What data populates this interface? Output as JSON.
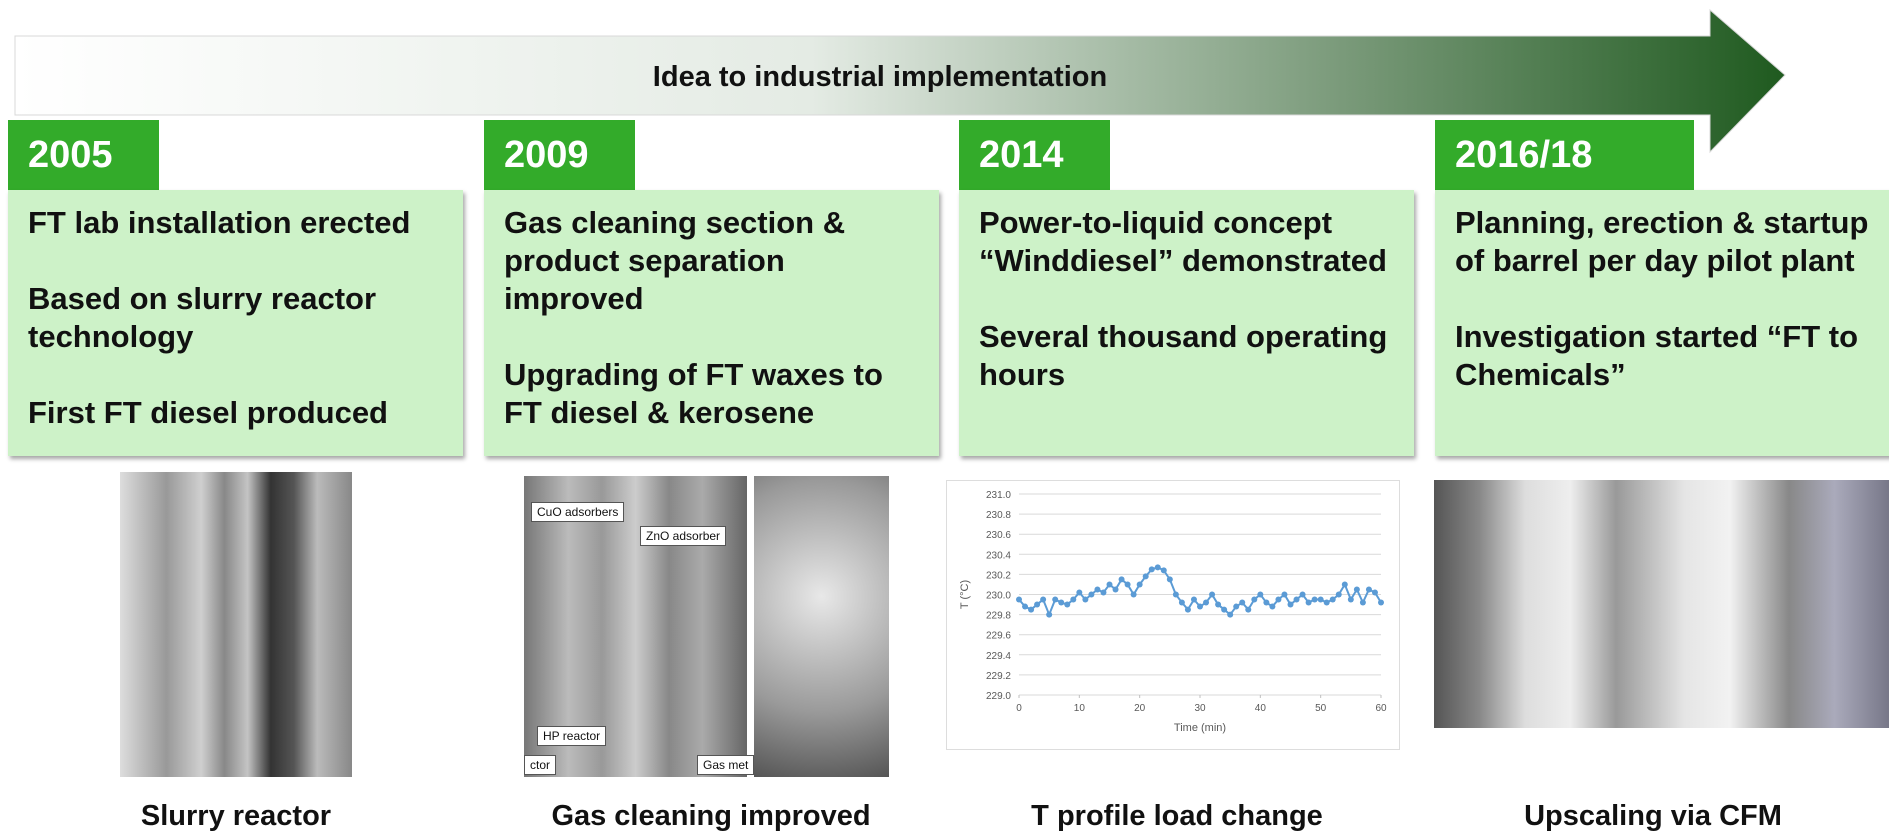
{
  "header": {
    "title": "Idea to industrial implementation"
  },
  "milestones": [
    {
      "year": "2005",
      "paragraphs": [
        "FT lab installation erected",
        "Based on slurry reactor technology",
        "First FT diesel produced"
      ],
      "caption": "Slurry reactor"
    },
    {
      "year": "2009",
      "paragraphs": [
        "Gas cleaning section & product separation improved",
        "Upgrading of FT waxes to FT diesel & kerosene"
      ],
      "caption": "Gas cleaning improved",
      "photo_labels": [
        "CuO adsorbers",
        "ZnO adsorber",
        "HP reactor",
        "ctor",
        "Gas met"
      ]
    },
    {
      "year": "2014",
      "paragraphs": [
        "Power-to-liquid concept “Winddiesel” demonstrated",
        "Several thousand operating hours"
      ],
      "caption": "T profile load change",
      "chart": {
        "type": "line",
        "xlabel": "Time (min)",
        "ylabel": "T (°C)",
        "color": "#5b9bd5",
        "x": [
          0,
          1,
          2,
          3,
          4,
          5,
          6,
          7,
          8,
          9,
          10,
          11,
          12,
          13,
          14,
          15,
          16,
          17,
          18,
          19,
          20,
          21,
          22,
          23,
          24,
          25,
          26,
          27,
          28,
          29,
          30,
          31,
          32,
          33,
          34,
          35,
          36,
          37,
          38,
          39,
          40,
          41,
          42,
          43,
          44,
          45,
          46,
          47,
          48,
          49,
          50,
          51,
          52,
          53,
          54,
          55,
          56,
          57,
          58,
          59,
          60
        ],
        "values": [
          229.95,
          229.88,
          229.85,
          229.9,
          229.95,
          229.8,
          229.95,
          229.92,
          229.9,
          229.95,
          230.02,
          229.95,
          230.0,
          230.05,
          230.02,
          230.1,
          230.05,
          230.15,
          230.1,
          230.0,
          230.1,
          230.18,
          230.25,
          230.27,
          230.24,
          230.15,
          230.0,
          229.92,
          229.85,
          229.95,
          229.88,
          229.92,
          230.0,
          229.9,
          229.85,
          229.8,
          229.88,
          229.92,
          229.85,
          229.95,
          230.0,
          229.92,
          229.88,
          229.95,
          230.0,
          229.9,
          229.95,
          230.0,
          229.92,
          229.95,
          229.95,
          229.92,
          229.95,
          230.0,
          230.1,
          229.95,
          230.05,
          229.92,
          230.05,
          230.02,
          229.92
        ],
        "xlim": [
          0,
          60
        ],
        "xticks": [
          0,
          10,
          20,
          30,
          40,
          50,
          60
        ],
        "ylim": [
          229,
          231
        ],
        "yticks": [
          {
            "value": 229,
            "label": "229.0"
          },
          {
            "value": 229.2,
            "label": "229.2"
          },
          {
            "value": 229.4,
            "label": "229.4"
          },
          {
            "value": 229.6,
            "label": "229.6"
          },
          {
            "value": 229.8,
            "label": "229.8"
          },
          {
            "value": 230,
            "label": "230.0"
          },
          {
            "value": 230.2,
            "label": "230.2"
          },
          {
            "value": 230.4,
            "label": "230.4"
          },
          {
            "value": 230.6,
            "label": "230.6"
          },
          {
            "value": 230.8,
            "label": "230.8"
          },
          {
            "value": 231,
            "label": "231.0"
          }
        ],
        "grid": true
      }
    },
    {
      "year": "2016/18",
      "paragraphs": [
        "Planning, erection & startup of barrel per day pilot plant",
        "Investigation started “FT to Chemicals”"
      ],
      "caption": "Upscaling via CFM"
    }
  ]
}
